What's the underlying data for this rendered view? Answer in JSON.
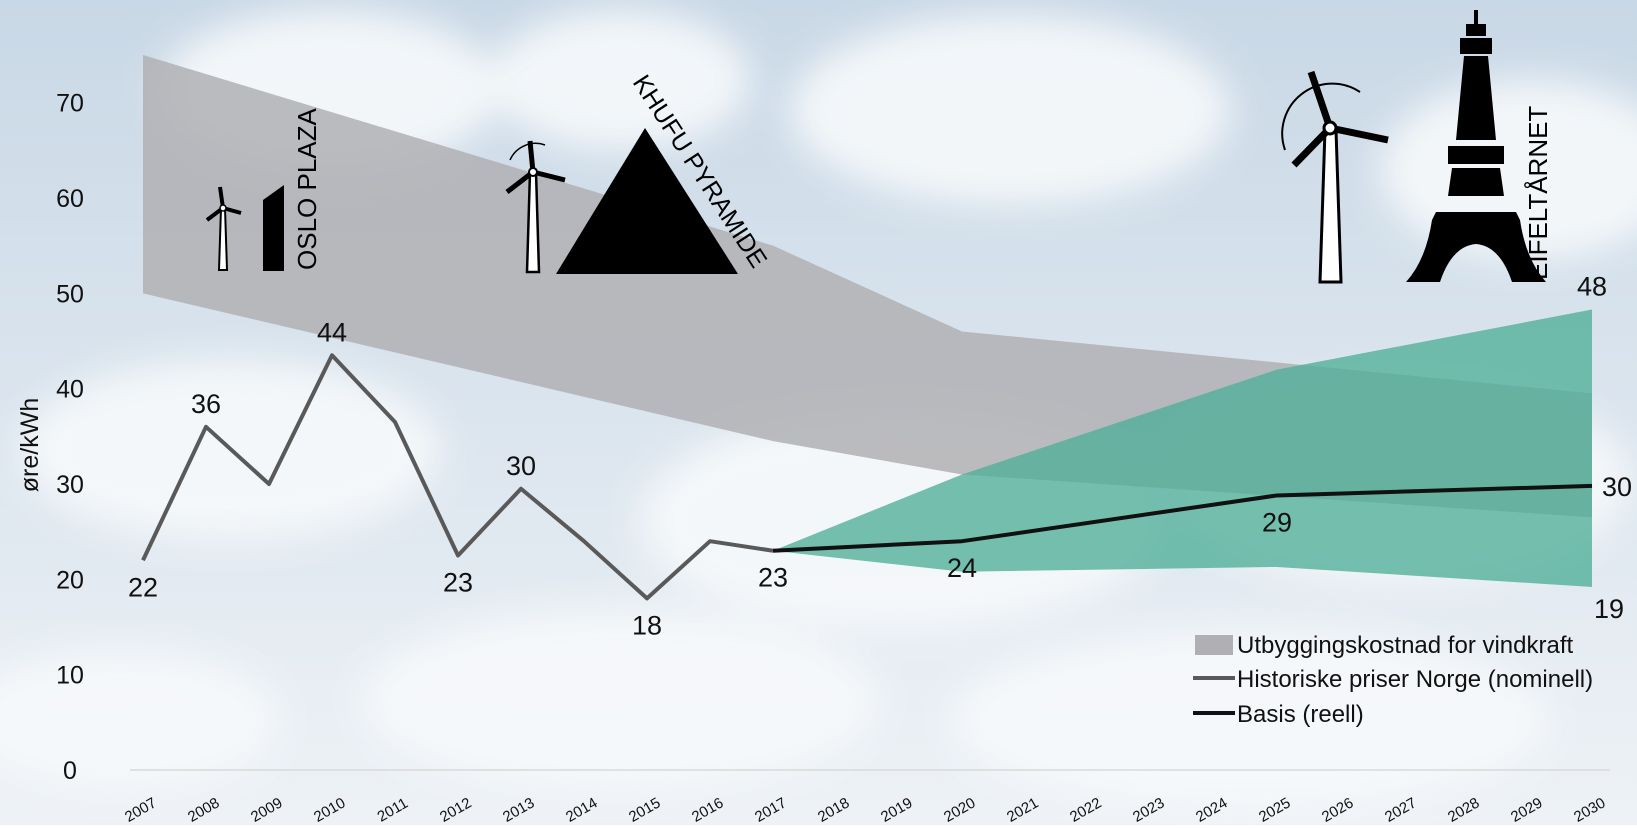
{
  "chart_data": {
    "type": "line",
    "ylabel": "øre/kWh",
    "ylim": [
      0,
      75
    ],
    "yticks": [
      0,
      10,
      20,
      30,
      40,
      50,
      60,
      70
    ],
    "x": [
      2007,
      2008,
      2009,
      2010,
      2011,
      2012,
      2013,
      2014,
      2015,
      2016,
      2017,
      2018,
      2019,
      2020,
      2021,
      2022,
      2023,
      2024,
      2025,
      2026,
      2027,
      2028,
      2029,
      2030
    ],
    "xtick_labels": [
      "2007",
      "2008",
      "2009",
      "2010",
      "2011",
      "2012",
      "2013",
      "2014",
      "2015",
      "2016",
      "2017",
      "2018",
      "2019",
      "2020",
      "2021",
      "2022",
      "2023",
      "2024",
      "2025",
      "2026",
      "2027",
      "2028",
      "2029",
      "2030"
    ],
    "legend_position": "bottom-right",
    "series": [
      {
        "name": "Utbyggingskostnad for vindkraft",
        "kind": "band",
        "color": "#b0b0b4",
        "upper": [
          [
            2007,
            75
          ],
          [
            2017,
            55
          ],
          [
            2020,
            46
          ],
          [
            2030,
            39.5
          ]
        ],
        "lower": [
          [
            2007,
            50
          ],
          [
            2017,
            34.5
          ],
          [
            2020,
            31
          ],
          [
            2030,
            26.5
          ]
        ]
      },
      {
        "name": "",
        "kind": "band",
        "color": "#4fae98",
        "upper": [
          [
            2017,
            23
          ],
          [
            2020,
            31
          ],
          [
            2025,
            42
          ],
          [
            2030,
            48.3
          ]
        ],
        "lower": [
          [
            2017,
            23
          ],
          [
            2020,
            20.8
          ],
          [
            2025,
            21.3
          ],
          [
            2030,
            19.2
          ]
        ]
      },
      {
        "name": "Historiske priser Norge (nominell)",
        "kind": "line",
        "color": "#595959",
        "points": [
          [
            2007,
            22
          ],
          [
            2008,
            36
          ],
          [
            2009,
            30
          ],
          [
            2010,
            43.5
          ],
          [
            2011,
            36.5
          ],
          [
            2012,
            22.5
          ],
          [
            2013,
            29.5
          ],
          [
            2014,
            24
          ],
          [
            2015,
            18
          ],
          [
            2016,
            24
          ],
          [
            2017,
            23
          ]
        ]
      },
      {
        "name": "Basis (reell)",
        "kind": "line",
        "color": "#111111",
        "points": [
          [
            2017,
            23
          ],
          [
            2020,
            24
          ],
          [
            2025,
            28.8
          ],
          [
            2030,
            29.8
          ]
        ]
      }
    ],
    "data_labels": [
      {
        "x": 2007,
        "y": 22,
        "text": "22",
        "pos": "below"
      },
      {
        "x": 2008,
        "y": 36,
        "text": "36",
        "pos": "above"
      },
      {
        "x": 2010,
        "y": 43.5,
        "text": "44",
        "pos": "above"
      },
      {
        "x": 2012,
        "y": 22.5,
        "text": "23",
        "pos": "below"
      },
      {
        "x": 2013,
        "y": 29.5,
        "text": "30",
        "pos": "above"
      },
      {
        "x": 2015,
        "y": 18,
        "text": "18",
        "pos": "below"
      },
      {
        "x": 2017,
        "y": 23,
        "text": "23",
        "pos": "below"
      },
      {
        "x": 2020,
        "y": 24,
        "text": "24",
        "pos": "below"
      },
      {
        "x": 2025,
        "y": 28.8,
        "text": "29",
        "pos": "below"
      },
      {
        "x": 2030,
        "y": 48.3,
        "text": "48",
        "pos": "above"
      },
      {
        "x": 2030,
        "y": 29.8,
        "text": "30",
        "pos": "right"
      },
      {
        "x": 2030,
        "y": 19.2,
        "text": "19",
        "pos": "below-right"
      }
    ],
    "annotations": [
      {
        "text": "OSLO PLAZA",
        "icons": [
          "wind-turbine-icon",
          "building-icon"
        ]
      },
      {
        "text": "KHUFU PYRAMIDE",
        "icons": [
          "wind-turbine-icon",
          "pyramid-icon"
        ]
      },
      {
        "text": "EIFELTÅRNET",
        "icons": [
          "wind-turbine-icon",
          "eiffel-tower-icon"
        ]
      }
    ]
  }
}
